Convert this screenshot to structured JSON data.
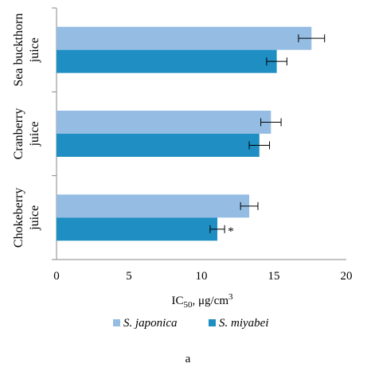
{
  "chart_data": {
    "type": "bar",
    "orientation": "horizontal",
    "categories": [
      [
        "Chokeberry",
        "juice"
      ],
      [
        "Cranberry",
        "juice"
      ],
      [
        "Sea buckthorn",
        "juice"
      ]
    ],
    "series": [
      {
        "name": "S. japonica",
        "color": "#95bde3",
        "values": [
          13.3,
          14.8,
          17.6
        ],
        "errors": [
          0.6,
          0.7,
          0.9
        ]
      },
      {
        "name": "S. miyabei",
        "color": "#1f8ec2",
        "values": [
          11.1,
          14.0,
          15.2
        ],
        "errors": [
          0.5,
          0.7,
          0.7
        ]
      }
    ],
    "annotations": [
      {
        "series": 1,
        "category": 0,
        "text": "*"
      }
    ],
    "xlim": [
      0,
      20
    ],
    "xticks": [
      0,
      5,
      10,
      15,
      20
    ],
    "xlabel": {
      "main": "IC",
      "sub": "50",
      "rest": ", μg/cm",
      "sup": "3"
    },
    "legend_position": "bottom",
    "grid": false
  },
  "caption": "a"
}
